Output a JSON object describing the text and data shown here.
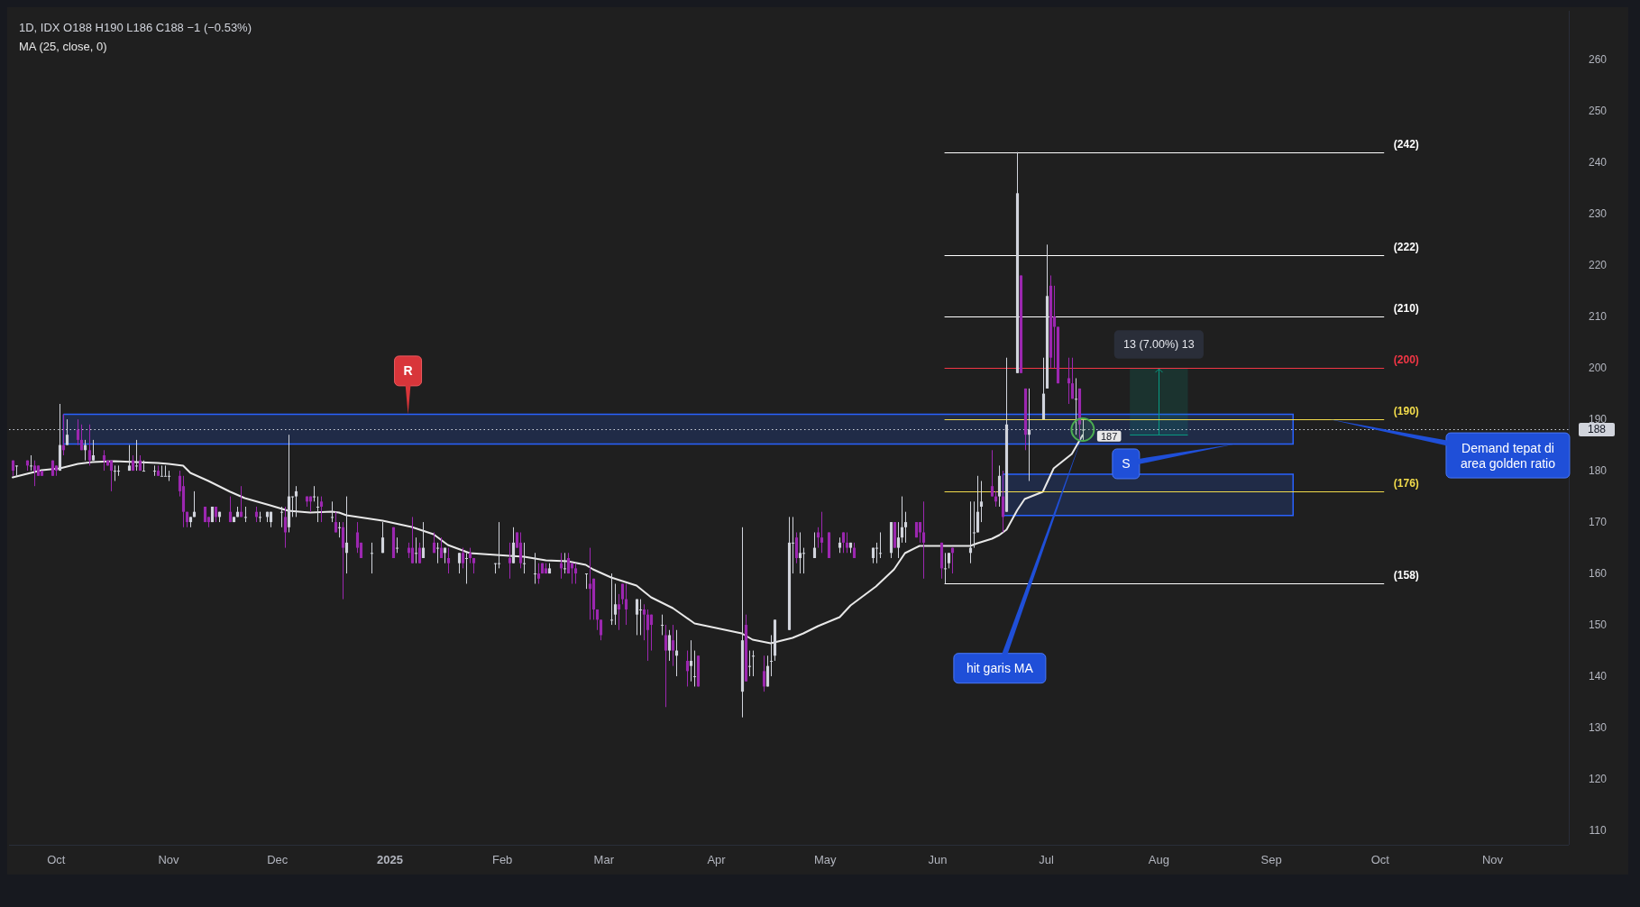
{
  "chart_data": {
    "type": "candlestick",
    "title": "1D, IDX O188 H190 L186 C188 −1 (−0.53%)",
    "legend": "top left",
    "x": [
      "2024-09-19",
      "2024-09-20",
      "2024-09-23",
      "2024-09-24",
      "2024-09-25",
      "2024-09-26",
      "2024-09-27",
      "2024-09-30",
      "2024-10-01",
      "2024-10-02",
      "2024-10-03",
      "2024-10-04",
      "2024-10-07",
      "2024-10-08",
      "2024-10-09",
      "2024-10-10",
      "2024-10-11",
      "2024-10-14",
      "2024-10-15",
      "2024-10-16",
      "2024-10-17",
      "2024-10-18",
      "2024-10-21",
      "2024-10-22",
      "2024-10-23",
      "2024-10-24",
      "2024-10-25",
      "2024-10-28",
      "2024-10-29",
      "2024-10-30",
      "2024-10-31",
      "2024-11-01",
      "2024-11-04",
      "2024-11-05",
      "2024-11-06",
      "2024-11-07",
      "2024-11-08",
      "2024-11-11",
      "2024-11-12",
      "2024-11-13",
      "2024-11-14",
      "2024-11-15",
      "2024-11-18",
      "2024-11-19",
      "2024-11-20",
      "2024-11-21",
      "2024-11-22",
      "2024-11-25",
      "2024-11-26",
      "2024-11-28",
      "2024-11-29",
      "2024-12-02",
      "2024-12-03",
      "2024-12-04",
      "2024-12-05",
      "2024-12-06",
      "2024-12-09",
      "2024-12-10",
      "2024-12-11",
      "2024-12-12",
      "2024-12-13",
      "2024-12-16",
      "2024-12-17",
      "2024-12-18",
      "2024-12-19",
      "2024-12-20",
      "2024-12-23",
      "2024-12-24",
      "2024-12-27",
      "2024-12-30",
      "2025-01-02",
      "2025-01-03",
      "2025-01-06",
      "2025-01-07",
      "2025-01-08",
      "2025-01-09",
      "2025-01-10",
      "2025-01-13",
      "2025-01-14",
      "2025-01-15",
      "2025-01-16",
      "2025-01-17",
      "2025-01-20",
      "2025-01-21",
      "2025-01-22",
      "2025-01-23",
      "2025-01-24",
      "2025-01-30",
      "2025-01-31",
      "2025-02-03",
      "2025-02-04",
      "2025-02-05",
      "2025-02-06",
      "2025-02-07",
      "2025-02-10",
      "2025-02-11",
      "2025-02-12",
      "2025-02-13",
      "2025-02-14",
      "2025-02-17",
      "2025-02-18",
      "2025-02-19",
      "2025-02-20",
      "2025-02-21",
      "2025-02-24",
      "2025-02-25",
      "2025-02-26",
      "2025-02-27",
      "2025-02-28",
      "2025-03-03",
      "2025-03-04",
      "2025-03-05",
      "2025-03-06",
      "2025-03-07",
      "2025-03-10",
      "2025-03-11",
      "2025-03-12",
      "2025-03-13",
      "2025-03-14",
      "2025-03-17",
      "2025-03-18",
      "2025-03-19",
      "2025-03-20",
      "2025-03-21",
      "2025-03-24",
      "2025-03-25",
      "2025-03-26",
      "2025-03-27",
      "2025-04-08",
      "2025-04-09",
      "2025-04-10",
      "2025-04-11",
      "2025-04-14",
      "2025-04-15",
      "2025-04-16",
      "2025-04-17",
      "2025-04-21",
      "2025-04-22",
      "2025-04-23",
      "2025-04-24",
      "2025-04-25",
      "2025-04-28",
      "2025-04-29",
      "2025-04-30",
      "2025-05-02",
      "2025-05-05",
      "2025-05-06",
      "2025-05-07",
      "2025-05-08",
      "2025-05-09",
      "2025-05-14",
      "2025-05-15",
      "2025-05-16",
      "2025-05-19",
      "2025-05-20",
      "2025-05-21",
      "2025-05-22",
      "2025-05-23",
      "2025-05-26",
      "2025-05-27",
      "2025-05-28",
      "2025-06-02",
      "2025-06-03",
      "2025-06-04",
      "2025-06-05",
      "2025-06-10",
      "2025-06-11",
      "2025-06-12",
      "2025-06-13",
      "2025-06-16",
      "2025-06-17",
      "2025-06-18",
      "2025-06-19",
      "2025-06-20",
      "2025-06-23",
      "2025-06-24",
      "2025-06-25",
      "2025-06-26",
      "2025-06-30",
      "2025-07-01",
      "2025-07-02",
      "2025-07-03",
      "2025-07-04",
      "2025-07-07",
      "2025-07-08",
      "2025-07-09",
      "2025-07-10",
      "2025-07-11"
    ],
    "ohlc": [
      [
        182,
        182,
        179,
        180
      ],
      [
        181,
        181,
        179,
        181
      ],
      [
        182,
        182,
        180,
        181
      ],
      [
        181,
        183,
        180,
        181
      ],
      [
        181,
        182,
        177,
        180
      ],
      [
        181,
        181,
        179,
        179
      ],
      [
        180,
        180,
        179,
        179
      ],
      [
        182,
        182,
        179,
        179
      ],
      [
        181,
        181,
        179,
        180
      ],
      [
        180,
        193,
        180,
        185
      ],
      [
        185,
        191,
        183,
        184
      ],
      [
        185,
        190,
        185,
        187
      ],
      [
        188,
        190,
        185,
        186
      ],
      [
        186,
        189,
        184,
        184
      ],
      [
        184,
        186,
        182,
        185
      ],
      [
        184,
        189,
        181,
        182
      ],
      [
        182,
        186,
        182,
        183
      ],
      [
        183,
        184,
        180,
        182
      ],
      [
        182,
        182,
        181,
        181
      ],
      [
        182,
        182,
        176,
        180
      ],
      [
        180,
        181,
        178,
        180
      ],
      [
        180,
        181,
        179,
        180
      ],
      [
        180,
        185,
        180,
        181
      ],
      [
        182,
        183,
        180,
        180
      ],
      [
        181,
        186,
        180,
        181
      ],
      [
        182,
        183,
        180,
        180
      ],
      [
        180,
        182,
        180,
        180
      ],
      [
        180,
        181,
        179,
        180
      ],
      [
        180,
        181,
        179,
        179
      ],
      [
        179,
        181,
        179,
        179
      ],
      [
        179,
        181,
        179,
        179
      ],
      [
        179,
        180,
        178,
        179
      ],
      [
        179,
        180,
        175,
        176
      ],
      [
        177,
        179,
        169,
        172
      ],
      [
        172,
        172,
        169,
        170
      ],
      [
        170,
        171,
        169,
        171
      ],
      [
        171,
        176,
        171,
        172
      ],
      [
        173,
        173,
        170,
        170
      ],
      [
        171,
        171,
        169,
        170
      ],
      [
        170,
        173,
        170,
        173
      ],
      [
        173,
        173,
        170,
        171
      ],
      [
        171,
        172,
        170,
        172
      ],
      [
        172,
        175,
        170,
        170
      ],
      [
        170,
        171,
        170,
        171
      ],
      [
        171,
        173,
        171,
        172
      ],
      [
        172,
        177,
        171,
        171
      ],
      [
        171,
        173,
        170,
        171
      ],
      [
        172,
        173,
        170,
        171
      ],
      [
        171,
        172,
        170,
        171
      ],
      [
        171,
        172,
        170,
        172
      ],
      [
        170,
        172,
        169,
        172
      ],
      [
        172,
        173,
        169,
        172
      ],
      [
        171,
        173,
        165,
        168
      ],
      [
        169,
        187,
        168,
        175
      ],
      [
        175,
        175,
        171,
        175
      ],
      [
        175,
        177,
        171,
        176
      ],
      [
        175,
        175,
        173,
        174
      ],
      [
        175,
        175,
        172,
        174
      ],
      [
        175,
        177,
        174,
        175
      ],
      [
        173,
        175,
        170,
        173
      ],
      [
        174,
        175,
        170,
        173
      ],
      [
        171,
        174,
        170,
        171
      ],
      [
        170,
        172,
        168,
        168
      ],
      [
        169,
        170,
        167,
        169
      ],
      [
        169,
        170,
        155,
        165
      ],
      [
        164,
        175,
        160,
        166
      ],
      [
        168,
        170,
        164,
        165
      ],
      [
        166,
        166,
        163,
        163
      ],
      [
        164,
        166,
        160,
        164
      ],
      [
        164,
        170,
        164,
        167
      ],
      [
        169,
        169,
        163,
        163
      ],
      [
        165,
        167,
        164,
        165
      ],
      [
        165,
        166,
        163,
        164
      ],
      [
        165,
        171,
        162,
        162
      ],
      [
        164,
        167,
        162,
        164
      ],
      [
        165,
        166,
        162,
        162
      ],
      [
        163,
        170,
        163,
        165
      ],
      [
        166,
        168,
        164,
        164
      ],
      [
        165,
        166,
        162,
        165
      ],
      [
        165,
        167,
        163,
        163
      ],
      [
        164,
        165,
        162,
        165
      ],
      [
        163,
        165,
        160,
        162
      ],
      [
        162,
        164,
        160,
        164
      ],
      [
        164,
        165,
        161,
        162
      ],
      [
        163,
        164,
        158,
        163
      ],
      [
        164,
        165,
        162,
        163
      ],
      [
        163,
        163,
        160,
        162
      ],
      [
        162,
        162,
        160,
        162
      ],
      [
        162,
        170,
        161,
        162
      ],
      [
        163,
        166,
        159,
        162
      ],
      [
        162,
        169,
        162,
        166
      ],
      [
        168,
        168,
        165,
        165
      ],
      [
        166,
        168,
        161,
        162
      ],
      [
        162,
        166,
        160,
        162
      ],
      [
        160,
        164,
        158,
        160
      ],
      [
        160,
        162,
        158,
        159
      ],
      [
        162,
        162,
        160,
        160
      ],
      [
        161,
        162,
        160,
        160
      ],
      [
        160,
        162,
        160,
        161
      ],
      [
        162,
        164,
        159,
        161
      ],
      [
        161,
        164,
        160,
        161
      ],
      [
        163,
        164,
        160,
        160
      ],
      [
        162,
        162,
        158,
        161
      ],
      [
        161,
        162,
        158,
        160
      ],
      [
        160,
        160,
        157,
        160
      ],
      [
        158,
        165,
        151,
        157
      ],
      [
        159,
        159,
        151,
        153
      ],
      [
        153,
        153,
        149,
        151
      ],
      [
        151,
        151,
        147,
        148
      ],
      [
        151,
        160,
        150,
        151
      ],
      [
        152,
        158,
        150,
        154
      ],
      [
        154,
        156,
        149,
        153
      ],
      [
        158,
        158,
        154,
        155
      ],
      [
        155,
        158,
        150,
        153
      ],
      [
        152,
        155,
        148,
        155
      ],
      [
        153,
        155,
        148,
        153
      ],
      [
        153,
        154,
        147,
        152
      ],
      [
        152,
        153,
        143,
        149
      ],
      [
        152,
        152,
        145,
        150
      ],
      [
        150,
        152,
        148,
        150
      ],
      [
        148,
        150,
        134,
        145
      ],
      [
        145,
        149,
        143,
        148
      ],
      [
        147,
        150,
        142,
        145
      ],
      [
        144,
        149,
        140,
        145
      ],
      [
        143,
        145,
        138,
        141
      ],
      [
        142,
        147,
        139,
        143
      ],
      [
        140,
        145,
        138,
        140
      ],
      [
        144,
        144,
        138,
        138
      ],
      [
        137,
        169,
        132,
        147
      ],
      [
        150,
        152,
        139,
        139
      ],
      [
        142,
        145,
        140,
        142
      ],
      [
        144,
        145,
        140,
        144
      ],
      [
        141,
        144,
        137,
        138
      ],
      [
        138,
        144,
        138,
        142
      ],
      [
        143,
        148,
        140,
        143
      ],
      [
        144,
        151,
        143,
        151
      ],
      [
        149,
        171,
        149,
        166
      ],
      [
        166,
        171,
        160,
        166
      ],
      [
        167,
        168,
        162,
        163
      ],
      [
        163,
        168,
        160,
        164
      ],
      [
        164,
        165,
        160,
        164
      ],
      [
        163,
        168,
        163,
        165
      ],
      [
        168,
        169,
        165,
        167
      ],
      [
        167,
        172,
        164,
        166
      ],
      [
        168,
        168,
        163,
        163
      ],
      [
        165,
        167,
        164,
        166
      ],
      [
        168,
        168,
        164,
        166
      ],
      [
        166,
        168,
        164,
        165
      ],
      [
        165,
        166,
        164,
        166
      ],
      [
        165,
        166,
        163,
        163
      ],
      [
        163,
        165,
        162,
        165
      ],
      [
        165,
        166,
        162,
        165
      ],
      [
        164,
        168,
        163,
        164
      ],
      [
        164,
        170,
        163,
        170
      ],
      [
        170,
        170,
        165,
        165
      ],
      [
        165,
        170,
        163,
        167
      ],
      [
        167,
        175,
        166,
        169
      ],
      [
        169,
        172,
        166,
        170
      ],
      [
        170,
        170,
        167,
        167
      ],
      [
        170,
        170,
        166,
        168
      ],
      [
        168,
        174,
        159,
        166
      ],
      [
        166,
        166,
        159,
        161
      ],
      [
        161,
        164,
        158,
        161
      ],
      [
        162,
        164,
        161,
        164
      ],
      [
        165,
        165,
        160,
        164
      ],
      [
        164,
        174,
        162,
        165
      ],
      [
        168,
        174,
        165,
        168
      ],
      [
        168,
        179,
        168,
        172
      ],
      [
        173,
        178,
        170,
        174
      ],
      [
        177,
        184,
        175,
        175
      ],
      [
        175,
        176,
        173,
        174
      ],
      [
        175,
        181,
        173,
        179
      ],
      [
        175,
        180,
        168,
        171
      ],
      [
        172,
        202,
        172,
        189
      ],
      [
        199,
        242,
        199,
        234
      ],
      [
        218,
        218,
        199,
        199
      ],
      [
        196,
        196,
        184,
        187
      ],
      [
        187,
        196,
        178,
        188
      ],
      [
        190,
        202,
        190,
        195
      ],
      [
        196,
        224,
        196,
        214
      ],
      [
        216,
        218,
        200,
        202
      ],
      [
        210,
        216,
        200,
        208
      ],
      [
        208,
        208,
        197,
        197
      ],
      [
        198,
        202,
        193,
        197
      ],
      [
        197,
        202,
        194,
        194
      ],
      [
        194,
        198,
        187,
        194
      ],
      [
        196,
        196,
        186,
        189
      ],
      [
        188,
        190,
        186,
        188
      ]
    ],
    "colors": [
      "#9c27b0",
      "#d1d4dc",
      "#9c27b0",
      "#d1d4dc",
      "#9c27b0",
      "#9c27b0",
      "#9c27b0",
      "#9c27b0",
      "#9c27b0",
      "#d1d4dc",
      "#9c27b0",
      "#d1d4dc",
      "#9c27b0",
      "#9c27b0",
      "#d1d4dc",
      "#9c27b0",
      "#d1d4dc",
      "#9c27b0",
      "#9c27b0",
      "#9c27b0",
      "#d1d4dc",
      "#d1d4dc",
      "#d1d4dc",
      "#9c27b0",
      "#d1d4dc",
      "#9c27b0",
      "#d1d4dc",
      "#d1d4dc",
      "#9c27b0",
      "#d1d4dc",
      "#d1d4dc",
      "#d1d4dc",
      "#9c27b0",
      "#9c27b0",
      "#9c27b0",
      "#d1d4dc",
      "#d1d4dc",
      "#9c27b0",
      "#9c27b0",
      "#d1d4dc",
      "#9c27b0",
      "#d1d4dc",
      "#9c27b0",
      "#d1d4dc",
      "#d1d4dc",
      "#9c27b0",
      "#d1d4dc",
      "#9c27b0",
      "#d1d4dc",
      "#d1d4dc",
      "#d1d4dc",
      "#d1d4dc",
      "#9c27b0",
      "#d1d4dc",
      "#d1d4dc",
      "#d1d4dc",
      "#9c27b0",
      "#9c27b0",
      "#d1d4dc",
      "#d1d4dc",
      "#9c27b0",
      "#d1d4dc",
      "#9c27b0",
      "#d1d4dc",
      "#9c27b0",
      "#d1d4dc",
      "#9c27b0",
      "#9c27b0",
      "#d1d4dc",
      "#d1d4dc",
      "#9c27b0",
      "#d1d4dc",
      "#9c27b0",
      "#9c27b0",
      "#d1d4dc",
      "#9c27b0",
      "#d1d4dc",
      "#9c27b0",
      "#d1d4dc",
      "#9c27b0",
      "#d1d4dc",
      "#9c27b0",
      "#d1d4dc",
      "#9c27b0",
      "#d1d4dc",
      "#9c27b0",
      "#9c27b0",
      "#d1d4dc",
      "#d1d4dc",
      "#9c27b0",
      "#d1d4dc",
      "#9c27b0",
      "#9c27b0",
      "#d1d4dc",
      "#d1d4dc",
      "#9c27b0",
      "#9c27b0",
      "#9c27b0",
      "#d1d4dc",
      "#9c27b0",
      "#d1d4dc",
      "#9c27b0",
      "#9c27b0",
      "#9c27b0",
      "#d1d4dc",
      "#9c27b0",
      "#9c27b0",
      "#9c27b0",
      "#9c27b0",
      "#d1d4dc",
      "#d1d4dc",
      "#9c27b0",
      "#9c27b0",
      "#9c27b0",
      "#d1d4dc",
      "#d1d4dc",
      "#9c27b0",
      "#9c27b0",
      "#9c27b0",
      "#d1d4dc",
      "#9c27b0",
      "#d1d4dc",
      "#9c27b0",
      "#d1d4dc",
      "#9c27b0",
      "#d1d4dc",
      "#d1d4dc",
      "#9c27b0",
      "#d1d4dc",
      "#9c27b0",
      "#d1d4dc",
      "#d1d4dc",
      "#9c27b0",
      "#d1d4dc",
      "#d1d4dc",
      "#d1d4dc",
      "#d1d4dc",
      "#d1d4dc",
      "#9c27b0",
      "#d1d4dc",
      "#d1d4dc",
      "#d1d4dc",
      "#9c27b0",
      "#9c27b0",
      "#9c27b0",
      "#d1d4dc",
      "#9c27b0",
      "#9c27b0",
      "#d1d4dc",
      "#9c27b0",
      "#d1d4dc",
      "#d1d4dc",
      "#d1d4dc",
      "#d1d4dc",
      "#9c27b0",
      "#d1d4dc",
      "#d1d4dc",
      "#d1d4dc",
      "#9c27b0",
      "#9c27b0",
      "#9c27b0",
      "#9c27b0",
      "#d1d4dc",
      "#d1d4dc",
      "#9c27b0",
      "#d1d4dc",
      "#d1d4dc",
      "#d1d4dc",
      "#d1d4dc",
      "#9c27b0",
      "#9c27b0",
      "#d1d4dc",
      "#9c27b0",
      "#d1d4dc",
      "#d1d4dc",
      "#9c27b0",
      "#9c27b0",
      "#d1d4dc",
      "#d1d4dc",
      "#d1d4dc",
      "#9c27b0",
      "#9c27b0",
      "#9c27b0",
      "#9c27b0",
      "#9c27b0",
      "#d1d4dc",
      "#9c27b0",
      "#d1d4dc"
    ],
    "series": [
      {
        "name": "MA (25, close, 0)",
        "type": "line",
        "color": "#e8e8e8",
        "x": [
          "2024-09-19",
          "2024-09-24",
          "2024-09-27",
          "2024-10-02",
          "2024-10-07",
          "2024-10-11",
          "2024-10-17",
          "2024-10-23",
          "2024-10-29",
          "2024-11-01",
          "2024-11-05",
          "2024-11-07",
          "2024-11-12",
          "2024-11-18",
          "2024-11-22",
          "2024-11-29",
          "2024-12-04",
          "2024-12-10",
          "2024-12-16",
          "2024-12-18",
          "2024-12-20",
          "2024-12-30",
          "2025-01-07",
          "2025-01-13",
          "2025-01-17",
          "2025-01-23",
          "2025-02-03",
          "2025-02-07",
          "2025-02-13",
          "2025-02-19",
          "2025-02-24",
          "2025-02-26",
          "2025-03-03",
          "2025-03-10",
          "2025-03-14",
          "2025-03-20",
          "2025-03-26",
          "2025-04-08",
          "2025-04-11",
          "2025-04-16",
          "2025-04-22",
          "2025-04-25",
          "2025-04-29",
          "2025-05-05",
          "2025-05-08",
          "2025-05-15",
          "2025-05-20",
          "2025-05-23",
          "2025-05-27",
          "2025-06-03",
          "2025-06-10",
          "2025-06-12",
          "2025-06-16",
          "2025-06-18",
          "2025-06-20",
          "2025-06-23",
          "2025-06-25",
          "2025-06-30",
          "2025-07-03",
          "2025-07-08",
          "2025-07-11"
        ],
        "values": [
          178.7,
          179.7,
          180.2,
          180.6,
          181.5,
          181.7,
          181.9,
          181.8,
          181.6,
          181.5,
          181.0,
          179.7,
          178.0,
          176.0,
          174.8,
          173.4,
          172.3,
          171.9,
          172.1,
          172.0,
          171.4,
          170.4,
          169.2,
          167.8,
          165.7,
          164.1,
          163.6,
          163.4,
          162.6,
          162.4,
          161.8,
          160.9,
          159.3,
          157.8,
          155.5,
          153.3,
          150.3,
          148.5,
          147.2,
          146.5,
          147.5,
          148.5,
          149.9,
          151.6,
          153.8,
          157.5,
          160.9,
          164.0,
          165.5,
          165.4,
          165.4,
          165.9,
          166.9,
          167.6,
          168.6,
          172.4,
          174.6,
          175.9,
          180.6,
          183.3,
          187
        ],
        "value_labels": [
          null,
          null,
          null,
          null,
          null,
          null,
          null,
          null,
          null,
          null,
          null,
          null,
          null,
          null,
          null,
          null,
          null,
          null,
          null,
          null,
          null,
          null,
          null,
          null,
          null,
          null,
          null,
          null,
          null,
          null,
          null,
          null,
          null,
          null,
          null,
          null,
          null,
          null,
          null,
          null,
          null,
          null,
          null,
          null,
          null,
          null,
          null,
          null,
          null,
          null,
          null,
          null,
          null,
          null,
          null,
          null,
          null,
          null,
          null,
          null,
          "187"
        ]
      },
      {
        "type": "line",
        "color": "#ffffff",
        "x": [
          "2025-06-03",
          "2025-10-02"
        ],
        "values": [
          242,
          242
        ],
        "value_labels": [
          null,
          "(242)"
        ]
      },
      {
        "type": "line",
        "color": "#ffffff",
        "x": [
          "2025-06-03",
          "2025-10-02"
        ],
        "values": [
          222,
          222
        ],
        "value_labels": [
          null,
          "(222)"
        ]
      },
      {
        "type": "line",
        "color": "#ffffff",
        "x": [
          "2025-06-03",
          "2025-10-02"
        ],
        "values": [
          210,
          210
        ],
        "value_labels": [
          null,
          "(210)"
        ]
      },
      {
        "type": "line",
        "color": "#f23645",
        "x": [
          "2025-06-03",
          "2025-10-02"
        ],
        "values": [
          200,
          200
        ],
        "value_labels": [
          null,
          "(200)"
        ]
      },
      {
        "type": "line",
        "color": "#f2dc4b",
        "x": [
          "2025-06-03",
          "2025-10-02"
        ],
        "values": [
          190,
          190
        ],
        "value_labels": [
          null,
          "(190)"
        ]
      },
      {
        "type": "line",
        "color": "#f2dc4b",
        "x": [
          "2025-06-03",
          "2025-10-02"
        ],
        "values": [
          176,
          176
        ],
        "value_labels": [
          null,
          "(176)"
        ]
      },
      {
        "type": "line",
        "color": "#ffffff",
        "x": [
          "2025-06-03",
          "2025-10-02"
        ],
        "values": [
          158,
          158
        ],
        "value_labels": [
          null,
          "(158)"
        ]
      },
      {
        "type": "line",
        "color": "#2962ff",
        "line_style": "solid",
        "x": [
          "2024-10-03",
          "2025-09-07"
        ],
        "values": [
          null,
          null
        ],
        "lower": [
          185.2,
          185.2
        ],
        "upper": [
          191,
          191
        ]
      },
      {
        "type": "line",
        "color": "#2962ff",
        "line_style": "solid",
        "x": [
          "2025-06-19",
          "2025-09-07"
        ],
        "values": [
          null,
          null
        ],
        "lower": [
          171.3,
          171.3
        ],
        "upper": [
          179.3,
          179.3
        ]
      },
      {
        "type": "line",
        "color": "#089981",
        "x": [
          "2025-07-24",
          "2025-08-09"
        ],
        "values": [
          null,
          null
        ],
        "lower": [
          187,
          187
        ],
        "upper": [
          200,
          200
        ]
      }
    ],
    "xlim": [
      "2024-09-18",
      "2025-11-22"
    ],
    "ylim": [
      107.2,
      269.5
    ],
    "xticks": [
      {
        "value": "2024-10-01",
        "label": "Oct"
      },
      {
        "value": "2024-11-01",
        "label": "Nov"
      },
      {
        "value": "2024-12-01",
        "label": "Dec"
      },
      {
        "value": "2025-01-01",
        "label": "2025"
      },
      {
        "value": "2025-02-01",
        "label": "Feb"
      },
      {
        "value": "2025-03-01",
        "label": "Mar"
      },
      {
        "value": "2025-04-01",
        "label": "Apr"
      },
      {
        "value": "2025-05-01",
        "label": "May"
      },
      {
        "value": "2025-06-01",
        "label": "Jun"
      },
      {
        "value": "2025-07-01",
        "label": "Jul"
      },
      {
        "value": "2025-08-01",
        "label": "Aug"
      },
      {
        "value": "2025-09-01",
        "label": "Sep"
      },
      {
        "value": "2025-10-01",
        "label": "Oct"
      },
      {
        "value": "2025-11-01",
        "label": "Nov"
      }
    ],
    "yticks": [
      110,
      120,
      130,
      140,
      150,
      160,
      170,
      180,
      190,
      200,
      210,
      220,
      230,
      240,
      250,
      260
    ],
    "ref_lines": [
      {
        "axis": "y",
        "value": 188,
        "label": "188",
        "color": "#d1d4dc",
        "line_style": "dotted"
      }
    ],
    "annotations": [
      {
        "text": "R",
        "x": "2025-01-06",
        "y": 191
      },
      {
        "text": "S",
        "x": "2025-08-22",
        "y": 185.2
      },
      {
        "text": "hit garis MA",
        "x": "2025-07-11",
        "y": 187
      },
      {
        "text": "Demand tepat di area golden ratio",
        "x": "2025-09-17",
        "y": 190
      },
      {
        "text": "13 (7.00%) 13",
        "x": "2025-08-01",
        "y": 200
      }
    ]
  }
}
